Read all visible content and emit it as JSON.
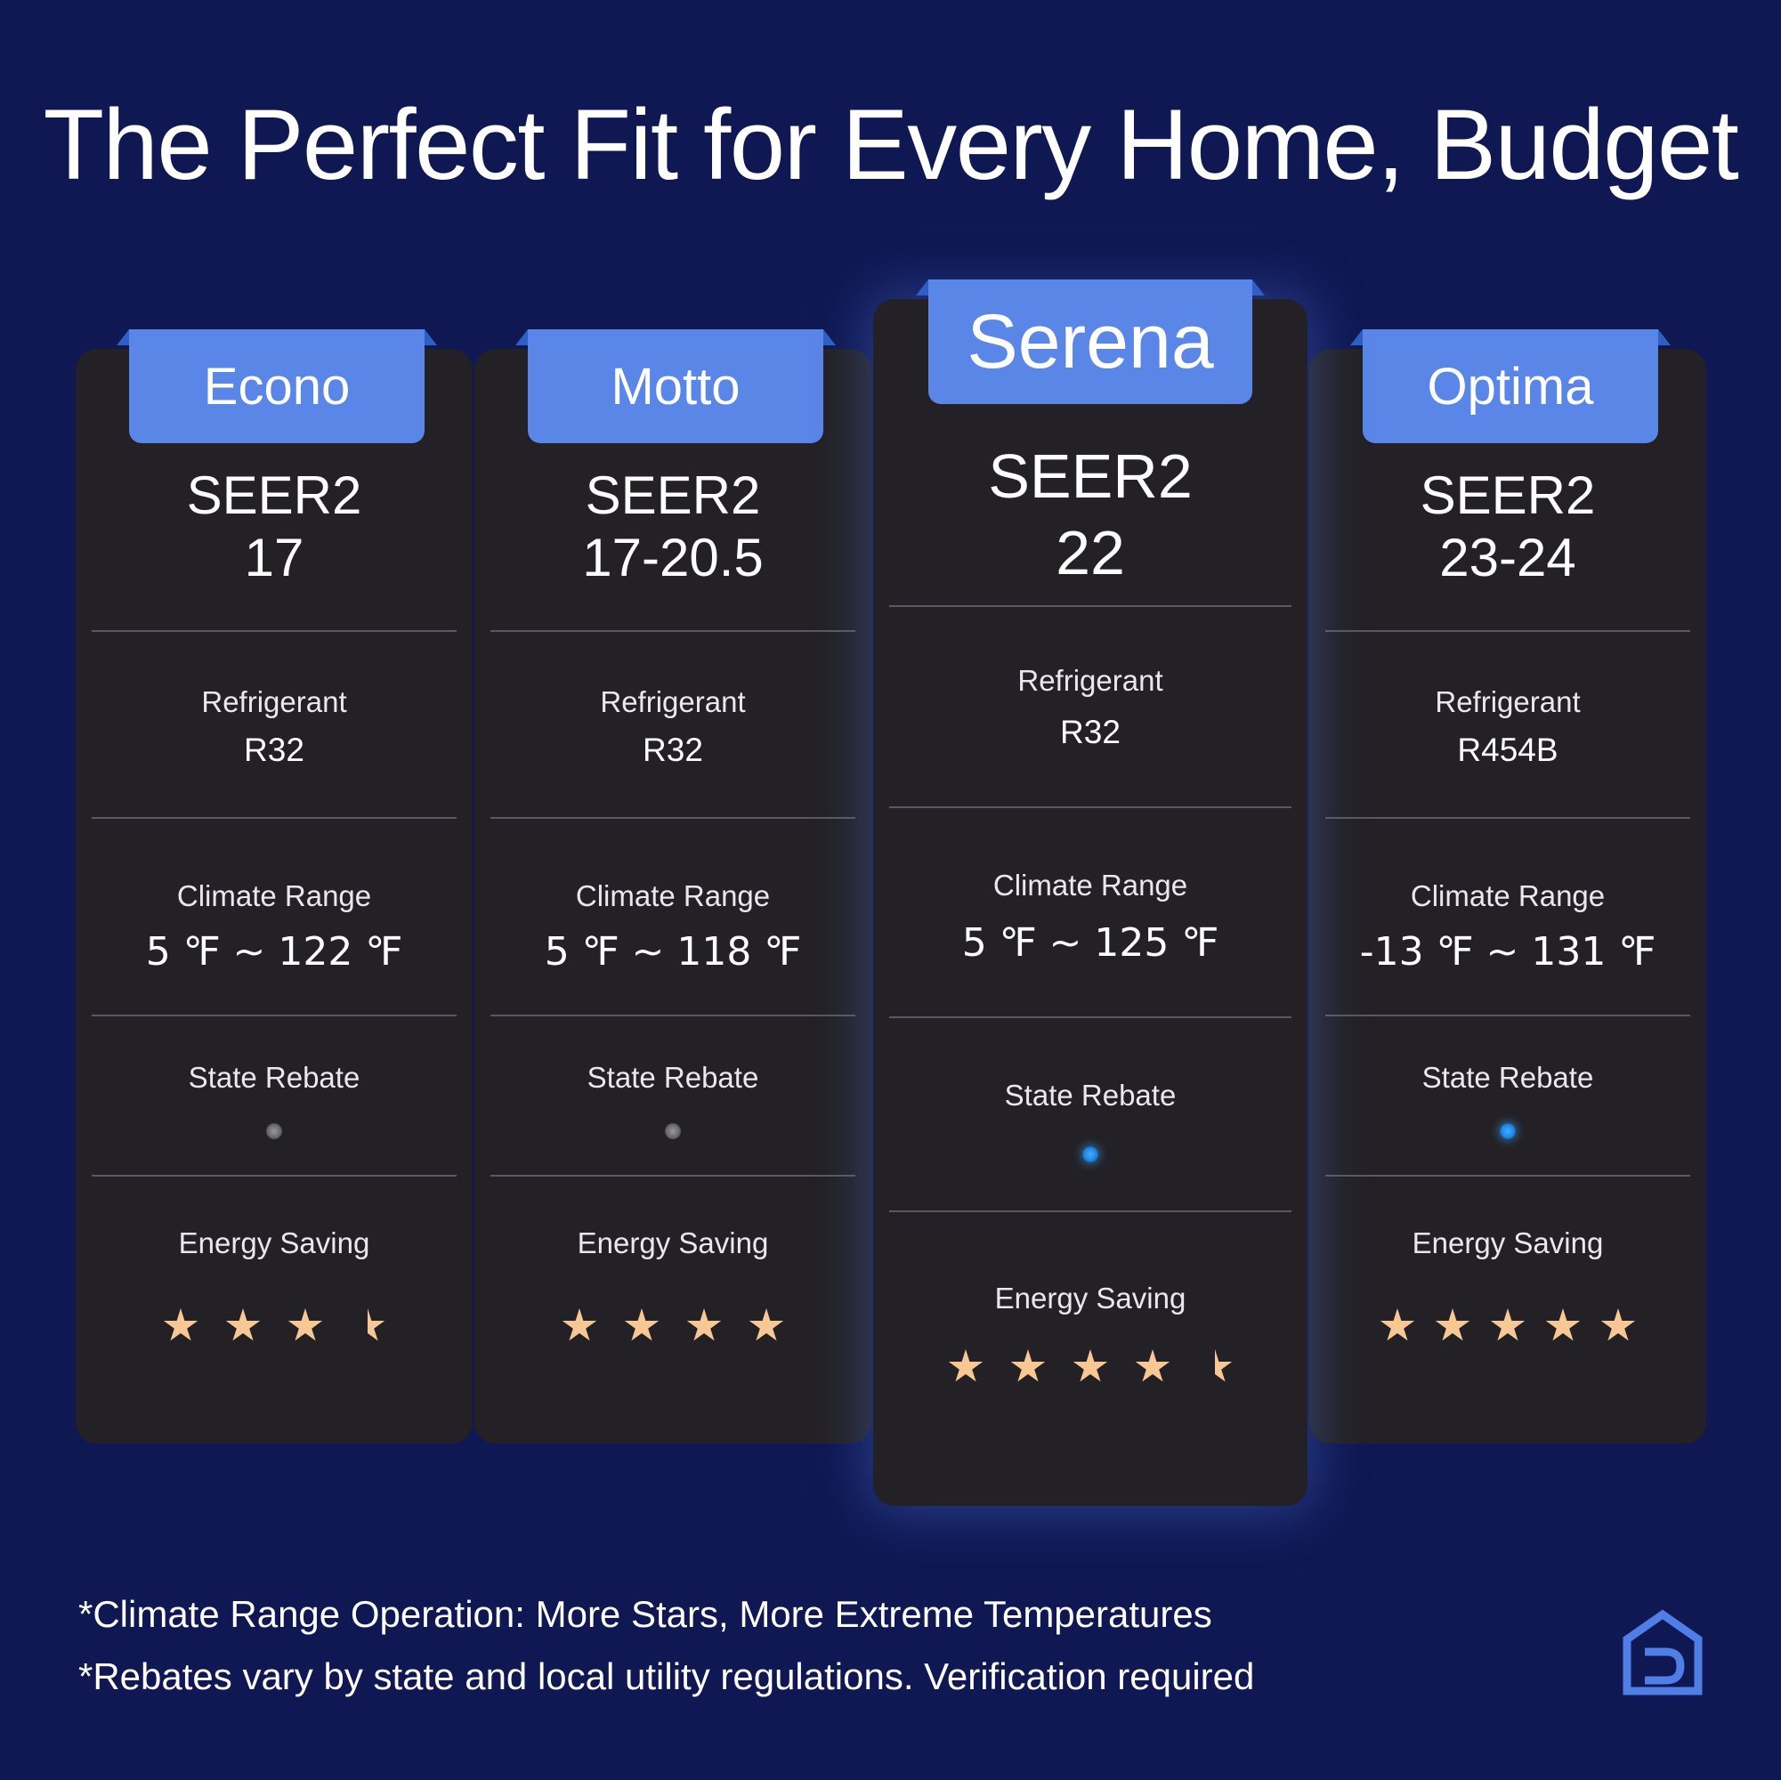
{
  "title": "The Perfect Fit for Every Home, Budget",
  "labels": {
    "refrigerant": "Refrigerant",
    "climate_range": "Climate Range",
    "state_rebate": "State Rebate",
    "energy_saving": "Energy Saving"
  },
  "models": [
    {
      "name": "Econo",
      "seer_label": "SEER2",
      "seer_value": "17",
      "refrigerant": "R32",
      "climate_range": "5 ℉ ~ 122 ℉",
      "state_rebate": false,
      "energy_saving_stars": 3.5,
      "highlighted": false
    },
    {
      "name": "Motto",
      "seer_label": "SEER2",
      "seer_value": "17-20.5",
      "refrigerant": "R32",
      "climate_range": "5 ℉ ~ 118 ℉",
      "state_rebate": false,
      "energy_saving_stars": 4,
      "highlighted": false
    },
    {
      "name": "Serena",
      "seer_label": "SEER2",
      "seer_value": "22",
      "refrigerant": "R32",
      "climate_range": "5 ℉ ~ 125 ℉",
      "state_rebate": true,
      "energy_saving_stars": 4.5,
      "highlighted": true
    },
    {
      "name": "Optima",
      "seer_label": "SEER2",
      "seer_value": "23-24",
      "refrigerant": "R454B",
      "climate_range": "-13 ℉ ~ 131 ℉",
      "state_rebate": true,
      "energy_saving_stars": 5,
      "highlighted": false
    }
  ],
  "footnotes": [
    "*Climate Range Operation: More Stars, More Extreme Temperatures",
    "*Rebates vary by state and local utility regulations. Verification required"
  ],
  "colors": {
    "background": "#0f1852",
    "card": "#232125",
    "tab": "#5a86e8",
    "star": "#f7c893",
    "rebate_dot_active": "#2f9bff",
    "rebate_dot_inactive": "#7a7a7a",
    "logo": "#4f7fe6"
  },
  "icons": {
    "brand_logo": "house-logo-icon"
  }
}
